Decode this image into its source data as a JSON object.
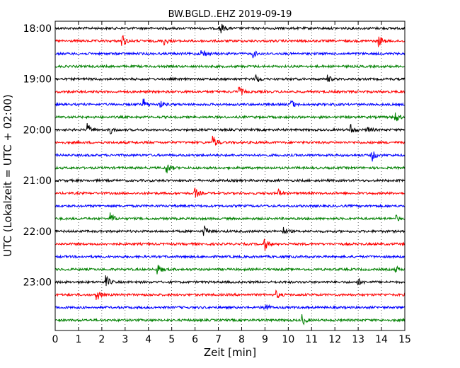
{
  "chart_data": {
    "type": "line",
    "title": "BW.BGLD..EHZ 2019-09-19",
    "xlabel": "Zeit  [min]",
    "ylabel": "UTC (Lokalzeit = UTC + 02:00)",
    "xlim": [
      0,
      15
    ],
    "x_ticks": [
      "0",
      "1",
      "2",
      "3",
      "4",
      "5",
      "6",
      "7",
      "8",
      "9",
      "10",
      "11",
      "12",
      "13",
      "14",
      "15"
    ],
    "y_tick_labels": [
      "18:00",
      "19:00",
      "20:00",
      "21:00",
      "22:00",
      "23:00"
    ],
    "grid": "vertical dotted",
    "trace_interval_min": 15,
    "color_cycle": [
      "#000000",
      "#ff0000",
      "#0000ff",
      "#008000"
    ],
    "traces": [
      {
        "start": "18:00",
        "color": "#000000",
        "events_min": [
          7.1
        ]
      },
      {
        "start": "18:15",
        "color": "#ff0000",
        "events_min": [
          2.9,
          4.7,
          13.9
        ]
      },
      {
        "start": "18:30",
        "color": "#0000ff",
        "events_min": [
          6.3,
          8.5
        ]
      },
      {
        "start": "18:45",
        "color": "#008000",
        "events_min": []
      },
      {
        "start": "19:00",
        "color": "#000000",
        "events_min": [
          8.6,
          11.7
        ]
      },
      {
        "start": "19:15",
        "color": "#ff0000",
        "events_min": [
          7.9
        ]
      },
      {
        "start": "19:30",
        "color": "#0000ff",
        "events_min": [
          3.8,
          4.5,
          10.1
        ]
      },
      {
        "start": "19:45",
        "color": "#008000",
        "events_min": [
          14.6
        ]
      },
      {
        "start": "20:00",
        "color": "#000000",
        "events_min": [
          1.4,
          2.4,
          12.7,
          13.4
        ]
      },
      {
        "start": "20:15",
        "color": "#ff0000",
        "events_min": [
          6.8
        ]
      },
      {
        "start": "20:30",
        "color": "#0000ff",
        "events_min": [
          13.6
        ]
      },
      {
        "start": "20:45",
        "color": "#008000",
        "events_min": [
          4.8
        ]
      },
      {
        "start": "21:00",
        "color": "#000000",
        "events_min": []
      },
      {
        "start": "21:15",
        "color": "#ff0000",
        "events_min": [
          6.0,
          9.6
        ]
      },
      {
        "start": "21:30",
        "color": "#0000ff",
        "events_min": []
      },
      {
        "start": "21:45",
        "color": "#008000",
        "events_min": [
          2.4,
          14.6
        ]
      },
      {
        "start": "22:00",
        "color": "#000000",
        "events_min": [
          6.4,
          9.8
        ]
      },
      {
        "start": "22:15",
        "color": "#ff0000",
        "events_min": [
          9.0
        ]
      },
      {
        "start": "22:30",
        "color": "#0000ff",
        "events_min": []
      },
      {
        "start": "22:45",
        "color": "#008000",
        "events_min": [
          4.4,
          14.6
        ]
      },
      {
        "start": "23:00",
        "color": "#000000",
        "events_min": [
          2.2,
          13.0
        ]
      },
      {
        "start": "23:15",
        "color": "#ff0000",
        "events_min": [
          1.8,
          9.5
        ]
      },
      {
        "start": "23:30",
        "color": "#0000ff",
        "events_min": [
          9.0
        ]
      },
      {
        "start": "23:45",
        "color": "#008000",
        "events_min": [
          10.6
        ]
      }
    ]
  }
}
